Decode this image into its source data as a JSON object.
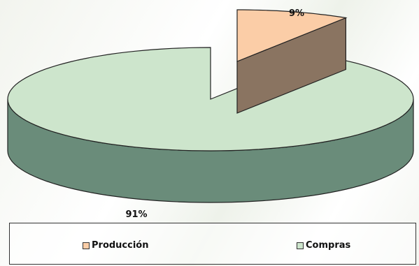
{
  "chart_data": {
    "type": "pie",
    "title": "",
    "categories": [
      "Producción",
      "Compras"
    ],
    "values": [
      9,
      91
    ],
    "data_labels": [
      "9%",
      "91%"
    ],
    "colors": {
      "Producción": {
        "top": "#fbcda7",
        "side": "#8a7461"
      },
      "Compras": {
        "top": "#cde5cc",
        "side": "#6a8c7a"
      }
    },
    "legend_position": "bottom",
    "three_d": true,
    "exploded_slice": "Producción"
  },
  "legend": {
    "items": [
      {
        "label": "Producción",
        "color": "#fbcda7"
      },
      {
        "label": "Compras",
        "color": "#cde5cc"
      }
    ]
  }
}
